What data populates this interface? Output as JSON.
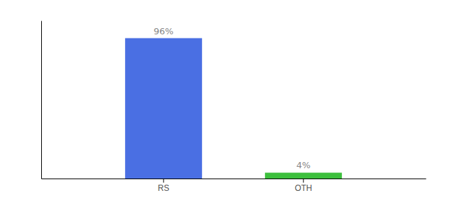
{
  "chart_data": {
    "type": "bar",
    "categories": [
      "RS",
      "OTH"
    ],
    "values": [
      96,
      4
    ],
    "value_labels": [
      "96%",
      "4%"
    ],
    "colors": [
      "#4A6FE3",
      "#3DBF3D"
    ],
    "ylim": [
      0,
      108
    ],
    "yticks": [],
    "grid": false,
    "data_labels": true,
    "tick_labels": "x"
  }
}
